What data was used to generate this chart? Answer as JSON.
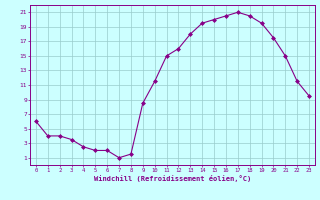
{
  "x": [
    0,
    1,
    2,
    3,
    4,
    5,
    6,
    7,
    8,
    9,
    10,
    11,
    12,
    13,
    14,
    15,
    16,
    17,
    18,
    19,
    20,
    21,
    22,
    23
  ],
  "y": [
    6,
    4,
    4,
    3.5,
    2.5,
    2,
    2,
    1,
    1.5,
    8.5,
    11.5,
    15,
    16,
    18,
    19.5,
    20,
    20.5,
    21,
    20.5,
    19.5,
    17.5,
    15,
    11.5,
    9.5
  ],
  "line_color": "#880088",
  "marker_color": "#880088",
  "bg_color": "#ccffff",
  "grid_color": "#99cccc",
  "tick_color": "#880088",
  "label_color": "#880088",
  "xlabel": "Windchill (Refroidissement éolien,°C)",
  "xlim": [
    -0.5,
    23.5
  ],
  "ylim": [
    0,
    22
  ],
  "yticks": [
    1,
    3,
    5,
    7,
    9,
    11,
    13,
    15,
    17,
    19,
    21
  ],
  "xticks": [
    0,
    1,
    2,
    3,
    4,
    5,
    6,
    7,
    8,
    9,
    10,
    11,
    12,
    13,
    14,
    15,
    16,
    17,
    18,
    19,
    20,
    21,
    22,
    23
  ]
}
